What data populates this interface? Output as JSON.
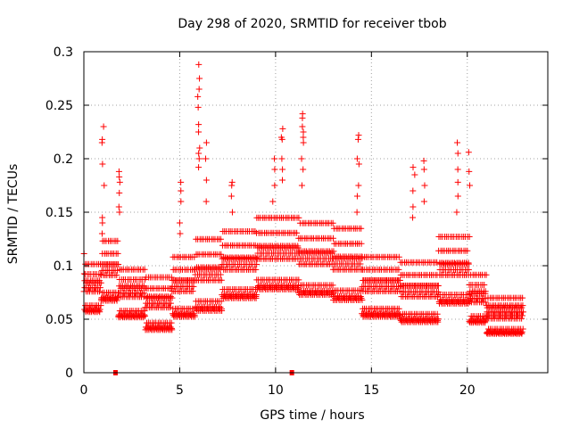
{
  "chart_data": {
    "type": "scatter",
    "title": "Day 298 of 2020, SRMTID for receiver tbob",
    "xlabel": "GPS time / hours",
    "ylabel": "SRMTID / TECUs",
    "xlim": [
      0,
      24.2
    ],
    "ylim": [
      0,
      0.3
    ],
    "xticks": [
      0,
      5,
      10,
      15,
      20
    ],
    "yticks": [
      0,
      0.05,
      0.1,
      0.15,
      0.2,
      0.25,
      0.3
    ],
    "xtick_labels": [
      "0",
      "5",
      "10",
      "15",
      "20"
    ],
    "ytick_labels": [
      "0",
      "0.05",
      "0.1",
      "0.15",
      "0.2",
      "0.25",
      "0.3"
    ],
    "grid": true,
    "marker": "+",
    "color": "#ff0000",
    "zero_markers_x": [
      1.65,
      10.85
    ],
    "segments": [
      {
        "t0": 0.0,
        "t1": 0.9,
        "base": 0.075,
        "spread": 0.02
      },
      {
        "t0": 0.9,
        "t1": 1.8,
        "base": 0.09,
        "spread": 0.025
      },
      {
        "t0": 1.8,
        "t1": 3.2,
        "base": 0.07,
        "spread": 0.02
      },
      {
        "t0": 3.2,
        "t1": 4.6,
        "base": 0.06,
        "spread": 0.022
      },
      {
        "t0": 4.6,
        "t1": 5.8,
        "base": 0.075,
        "spread": 0.025
      },
      {
        "t0": 5.8,
        "t1": 7.2,
        "base": 0.085,
        "spread": 0.03
      },
      {
        "t0": 7.2,
        "t1": 9.0,
        "base": 0.095,
        "spread": 0.028
      },
      {
        "t0": 9.0,
        "t1": 11.2,
        "base": 0.105,
        "spread": 0.03
      },
      {
        "t0": 11.2,
        "t1": 13.0,
        "base": 0.1,
        "spread": 0.03
      },
      {
        "t0": 13.0,
        "t1": 14.5,
        "base": 0.095,
        "spread": 0.03
      },
      {
        "t0": 14.5,
        "t1": 16.5,
        "base": 0.075,
        "spread": 0.025
      },
      {
        "t0": 16.5,
        "t1": 18.5,
        "base": 0.07,
        "spread": 0.025
      },
      {
        "t0": 18.5,
        "t1": 20.1,
        "base": 0.09,
        "spread": 0.028
      },
      {
        "t0": 20.1,
        "t1": 21.0,
        "base": 0.065,
        "spread": 0.02
      },
      {
        "t0": 21.0,
        "t1": 22.9,
        "base": 0.05,
        "spread": 0.015
      }
    ],
    "spikes": [
      {
        "x": 1.0,
        "ys": [
          0.23,
          0.218,
          0.215,
          0.195,
          0.175,
          0.145,
          0.14,
          0.13
        ]
      },
      {
        "x": 1.85,
        "ys": [
          0.188,
          0.183,
          0.178,
          0.168,
          0.155,
          0.15
        ]
      },
      {
        "x": 5.05,
        "ys": [
          0.178,
          0.17,
          0.16,
          0.14,
          0.13
        ]
      },
      {
        "x": 6.0,
        "ys": [
          0.288,
          0.275,
          0.265,
          0.258,
          0.248,
          0.232,
          0.225,
          0.21,
          0.205,
          0.2,
          0.192
        ]
      },
      {
        "x": 6.4,
        "ys": [
          0.215,
          0.2,
          0.18,
          0.16
        ]
      },
      {
        "x": 7.75,
        "ys": [
          0.178,
          0.175,
          0.165,
          0.15
        ]
      },
      {
        "x": 9.9,
        "ys": [
          0.2,
          0.19,
          0.175,
          0.16
        ]
      },
      {
        "x": 10.35,
        "ys": [
          0.228,
          0.22,
          0.218,
          0.2,
          0.19,
          0.18
        ]
      },
      {
        "x": 11.4,
        "ys": [
          0.242,
          0.238,
          0.23,
          0.225,
          0.22,
          0.215,
          0.2,
          0.19,
          0.175
        ]
      },
      {
        "x": 14.3,
        "ys": [
          0.222,
          0.218,
          0.2,
          0.195,
          0.175,
          0.165,
          0.15
        ]
      },
      {
        "x": 17.2,
        "ys": [
          0.192,
          0.185,
          0.17,
          0.155,
          0.145
        ]
      },
      {
        "x": 17.75,
        "ys": [
          0.198,
          0.19,
          0.175,
          0.16
        ]
      },
      {
        "x": 19.5,
        "ys": [
          0.215,
          0.205,
          0.19,
          0.178,
          0.165,
          0.15
        ]
      },
      {
        "x": 20.1,
        "ys": [
          0.206,
          0.188,
          0.175
        ]
      }
    ],
    "point_step_hours": 0.03,
    "points_per_step": 3
  }
}
